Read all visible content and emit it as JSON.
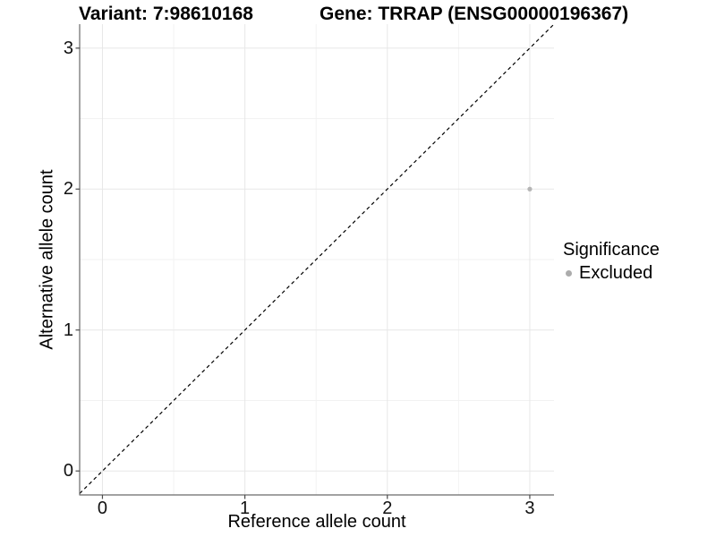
{
  "figure": {
    "title_left": "Variant: 7:98610168",
    "title_right": "Gene: TRRAP (ENSG00000196367)"
  },
  "chart_data": {
    "type": "scatter",
    "title_left": "Variant: 7:98610168",
    "title_right": "Gene: TRRAP (ENSG00000196367)",
    "xlabel": "Reference allele count",
    "ylabel": "Alternative allele count",
    "xlim": [
      -0.16,
      3.17
    ],
    "ylim": [
      -0.17,
      3.17
    ],
    "x_ticks": [
      0,
      1,
      2,
      3
    ],
    "y_ticks": [
      0,
      1,
      2,
      3
    ],
    "x_minor_gridlines": [
      0.5,
      1.5,
      2.5
    ],
    "y_minor_gridlines": [
      0.5,
      1.5,
      2.5
    ],
    "grid": "major and minor gridlines on white panel",
    "identity_line": {
      "equation": "y = x",
      "style": "dashed",
      "color": "#000000"
    },
    "series": [
      {
        "name": "Excluded",
        "color": "#b5b5b5",
        "point_radius": 2.6,
        "points": [
          [
            3,
            2
          ]
        ]
      }
    ],
    "legend": {
      "title": "Significance",
      "position": "right",
      "items": [
        {
          "label": "Excluded",
          "color": "#acacac"
        }
      ]
    },
    "colors": {
      "background": "#ffffff",
      "grid_major": "#e7e7e7",
      "grid_minor": "#f2f2f2",
      "axis_line": "#6a6a6a",
      "tick_mark": "#4a4a4a",
      "tick_label": "#111111"
    }
  }
}
